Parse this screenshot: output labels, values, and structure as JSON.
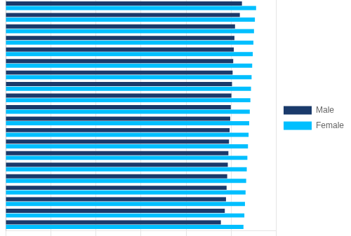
{
  "chart_data": {
    "type": "bar",
    "orientation": "horizontal",
    "categories": [
      null,
      null,
      null,
      null,
      null,
      null,
      null,
      null,
      null,
      null,
      null,
      null,
      null,
      null,
      null,
      null,
      null,
      null,
      null,
      null
    ],
    "series": [
      {
        "name": "Male",
        "color": "#1a3a6b",
        "values": [
          78.5,
          77.8,
          76.2,
          76.0,
          75.8,
          75.6,
          75.4,
          75.2,
          75.0,
          74.8,
          74.6,
          74.4,
          74.2,
          74.0,
          73.8,
          73.6,
          73.4,
          73.2,
          72.8,
          71.5
        ]
      },
      {
        "name": "Female",
        "color": "#00bfff",
        "values": [
          83.2,
          82.8,
          82.5,
          82.3,
          82.1,
          81.9,
          81.7,
          81.5,
          81.3,
          81.1,
          80.9,
          80.7,
          80.5,
          80.3,
          80.1,
          79.9,
          79.7,
          79.5,
          79.3,
          79.0
        ]
      }
    ],
    "xlim": [
      0,
      90
    ],
    "xticks": [
      0,
      15,
      30,
      45,
      60,
      75,
      90
    ],
    "grid": true,
    "legend": "right",
    "tick_labels": false
  }
}
